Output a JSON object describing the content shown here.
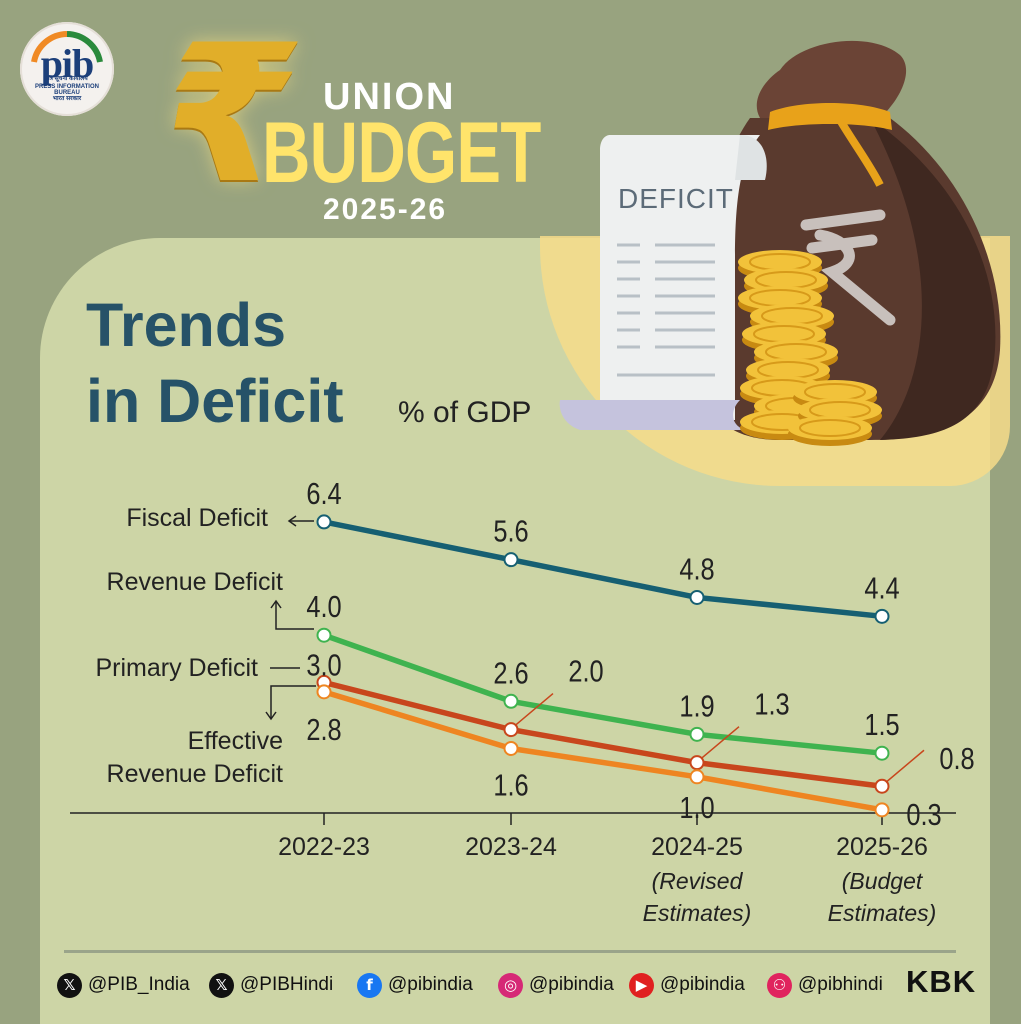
{
  "header": {
    "logo_main": "pib",
    "logo_line1": "पत्र सूचना कार्यालय",
    "logo_line2": "PRESS INFORMATION BUREAU",
    "logo_line3": "भारत सरकार",
    "union": "UNION",
    "budget": "BUDGET",
    "year": "2025-26"
  },
  "title": {
    "line1": "Trends",
    "line2": "in Deficit",
    "unit": "% of GDP"
  },
  "illustration": {
    "paper_title": "DEFICIT",
    "icons": [
      "money-bag-icon",
      "rupee-icon",
      "document-icon",
      "coin-stack-icon"
    ]
  },
  "colors": {
    "background": "#98a37f",
    "panel": "#cdd5a6",
    "title": "#265268",
    "fiscal": "#165f72",
    "revenue": "#3fb34f",
    "primary": "#c8461c",
    "effective": "#ee8521",
    "axis": "#222222"
  },
  "chart_data": {
    "type": "line",
    "categories": [
      "2022-23",
      "2023-24",
      "2024-25",
      "2025-26"
    ],
    "category_sublabels": [
      "",
      "",
      "(Revised Estimates)",
      "(Budget Estimates)"
    ],
    "category_sublabels_lines": [
      [],
      [],
      [
        "(Revised",
        "Estimates)"
      ],
      [
        "(Budget",
        "Estimates)"
      ]
    ],
    "ylabel": "% of GDP",
    "series": [
      {
        "name": "Fiscal Deficit",
        "values": [
          6.4,
          5.6,
          4.8,
          4.4
        ],
        "labels": [
          "6.4",
          "5.6",
          "4.8",
          "4.4"
        ],
        "color": "#165f72"
      },
      {
        "name": "Revenue Deficit",
        "values": [
          4.0,
          2.6,
          1.9,
          1.5
        ],
        "labels": [
          "4.0",
          "2.6",
          "1.9",
          "1.5"
        ],
        "color": "#3fb34f"
      },
      {
        "name": "Primary Deficit",
        "values": [
          3.0,
          2.0,
          1.3,
          0.8
        ],
        "labels": [
          "3.0",
          "2.0",
          "1.3",
          "0.8"
        ],
        "color": "#c8461c"
      },
      {
        "name": "Effective Revenue Deficit",
        "values": [
          2.8,
          1.6,
          1.0,
          0.3
        ],
        "labels": [
          "2.8",
          "1.6",
          "1.0",
          "0.3"
        ],
        "color": "#ee8521"
      }
    ],
    "series_name_lines": [
      [
        "Fiscal Deficit"
      ],
      [
        "Revenue Deficit"
      ],
      [
        "Primary Deficit"
      ],
      [
        "Effective",
        "Revenue Deficit"
      ]
    ]
  },
  "footer": {
    "handles": [
      {
        "icon": "x-icon",
        "text": "@PIB_India",
        "color": "#111111"
      },
      {
        "icon": "x-icon",
        "text": "@PIBHindi",
        "color": "#111111"
      },
      {
        "icon": "facebook-icon",
        "text": "@pibindia",
        "color": "#1877f2"
      },
      {
        "icon": "instagram-icon",
        "text": "@pibindia",
        "color": "#d62976"
      },
      {
        "icon": "youtube-icon",
        "text": "@pibindia",
        "color": "#e02020"
      },
      {
        "icon": "koo-icon",
        "text": "@pibhindi",
        "color": "#e0245e"
      }
    ],
    "signature": "KBK"
  }
}
